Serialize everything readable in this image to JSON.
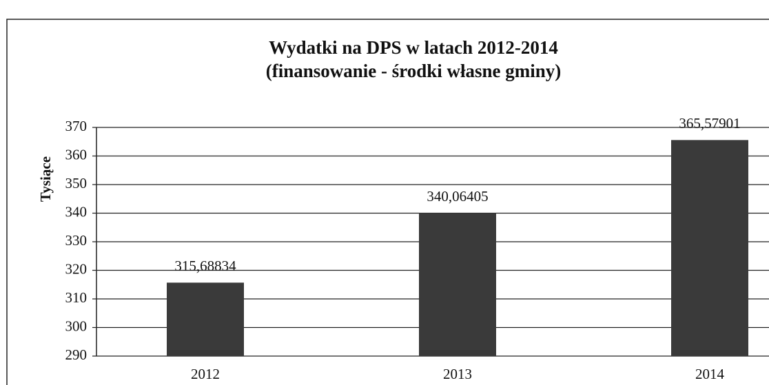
{
  "chart_data": {
    "type": "bar",
    "title": [
      "Wydatki na DPS w latach 2012-2014",
      "(finansowanie - środki własne gminy)"
    ],
    "y_label": "Tysiące",
    "categories": [
      "2012",
      "2013",
      "2014"
    ],
    "values": [
      315.68834,
      340.06405,
      365.57901
    ],
    "value_labels": [
      "315,68834",
      "340,06405",
      "365,57901"
    ],
    "color": "#3a3a3a",
    "ylim": [
      290,
      370
    ],
    "yticks": [
      290,
      300,
      310,
      320,
      330,
      340,
      350,
      360,
      370
    ],
    "grid": true
  }
}
